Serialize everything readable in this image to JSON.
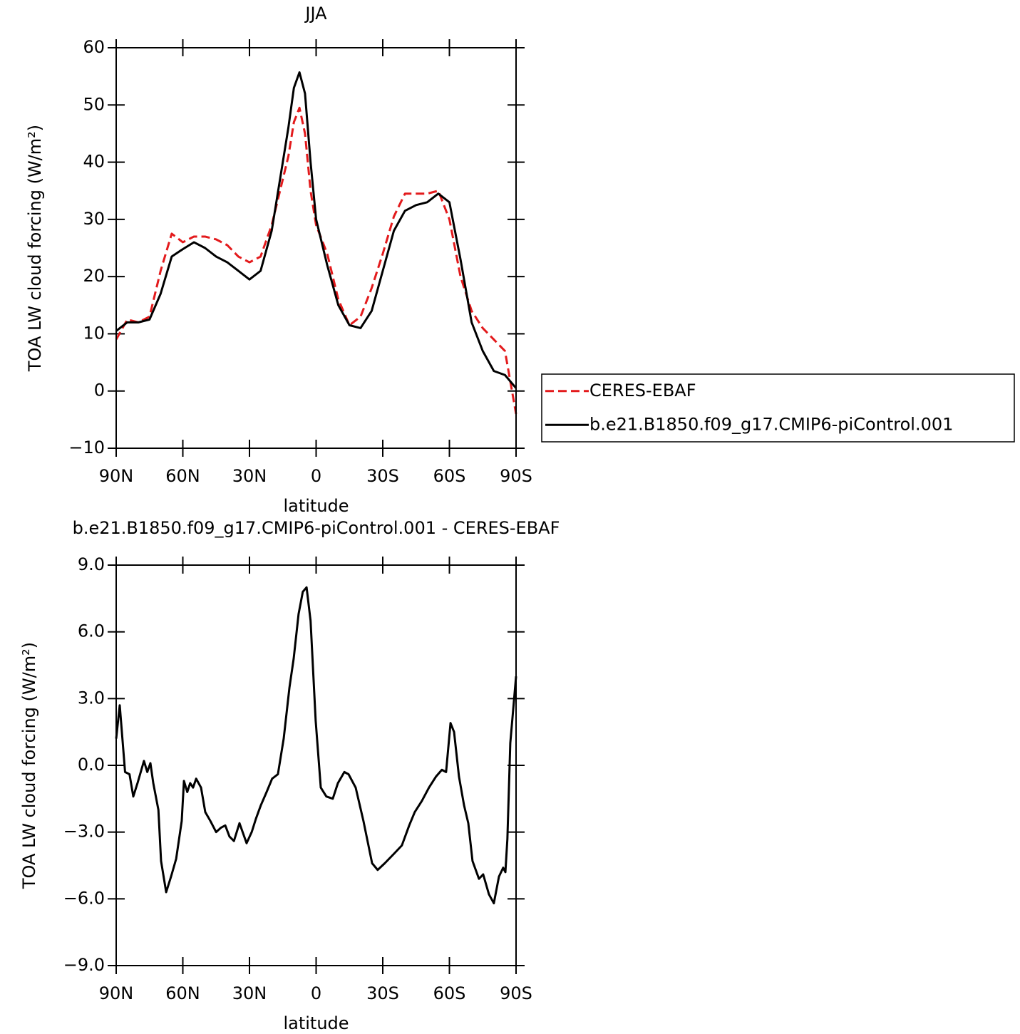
{
  "chart_data": [
    {
      "type": "line",
      "title": "JJA",
      "x_label": "latitude",
      "y_label": "TOA LW cloud forcing (W/m²)",
      "x": [
        90,
        85,
        80,
        75,
        70,
        65,
        60,
        55,
        50,
        45,
        40,
        35,
        30,
        25,
        20,
        15,
        12.5,
        10,
        7.5,
        5,
        2.5,
        0,
        -5,
        -10,
        -15,
        -20,
        -25,
        -30,
        -35,
        -40,
        -45,
        -50,
        -55,
        -60,
        -65,
        -70,
        -75,
        -80,
        -85,
        -90
      ],
      "xlim": [
        90,
        -90
      ],
      "xticks": [
        {
          "value": 90,
          "label": "90N"
        },
        {
          "value": 60,
          "label": "60N"
        },
        {
          "value": 30,
          "label": "30N"
        },
        0,
        {
          "value": -30,
          "label": "30S"
        },
        {
          "value": -60,
          "label": "60S"
        },
        {
          "value": -90,
          "label": "90S"
        }
      ],
      "ylim": [
        -10,
        60
      ],
      "yticks": [
        {
          "value": -10,
          "label": "−10"
        },
        0,
        10,
        20,
        30,
        40,
        50,
        60
      ],
      "legend": "right",
      "series": [
        {
          "name": "CERES-EBAF",
          "color": "#e31a1c",
          "linestyle": "dashed",
          "values": [
            9,
            12.5,
            12,
            13,
            21,
            27.5,
            26,
            27,
            27,
            26.5,
            25.5,
            23.5,
            22.5,
            23.5,
            29,
            37,
            41,
            47,
            49.5,
            45,
            35,
            29,
            24,
            16,
            11.5,
            13,
            18,
            24,
            30.5,
            34.5,
            34.5,
            34.5,
            35,
            30,
            20,
            14,
            11,
            9,
            7,
            -4
          ]
        },
        {
          "name": "b.e21.B1850.f09_g17.CMIP6-piControl.001",
          "color": "#000000",
          "linestyle": "solid",
          "values": [
            10.5,
            12,
            12,
            12.5,
            17,
            23.5,
            24.8,
            26,
            25,
            23.5,
            22.5,
            21,
            19.5,
            21,
            28,
            40,
            46,
            53,
            55.7,
            52,
            40,
            30,
            22,
            15,
            11.5,
            11,
            14,
            21,
            28,
            31.5,
            32.5,
            33,
            34.5,
            33,
            23,
            12,
            7,
            3.5,
            2.8,
            0.5
          ]
        }
      ]
    },
    {
      "type": "line",
      "title": "b.e21.B1850.f09_g17.CMIP6-piControl.001 - CERES-EBAF",
      "x_label": "latitude",
      "y_label": "TOA LW cloud forcing (W/m²)",
      "x": [
        90,
        88.4,
        86,
        84,
        82.3,
        80.4,
        77.5,
        76,
        74.6,
        73.3,
        71,
        69.8,
        67.5,
        65.3,
        63,
        60.5,
        59.5,
        58,
        56.7,
        55.4,
        54,
        51.8,
        49.9,
        47.6,
        45,
        42.8,
        40.9,
        39,
        37,
        34.5,
        31.3,
        29,
        27.1,
        24.9,
        22.3,
        19.8,
        17.2,
        14.6,
        12,
        10.1,
        7.9,
        6,
        4.3,
        2.5,
        0.2,
        -2.1,
        -4.6,
        -7.5,
        -9.8,
        -12.7,
        -14.6,
        -17.8,
        -21.3,
        -25.2,
        -27.7,
        -30.9,
        -34.8,
        -38.6,
        -41.9,
        -44.4,
        -47.6,
        -50.8,
        -54,
        -56.6,
        -58.5,
        -60.5,
        -62.1,
        -64.3,
        -66.6,
        -68.5,
        -70.4,
        -73.3,
        -75.2,
        -77.8,
        -80,
        -82.3,
        -84.2,
        -85.2,
        -86.1,
        -87.4,
        -90
      ],
      "xlim": [
        90,
        -90
      ],
      "xticks": [
        {
          "value": 90,
          "label": "90N"
        },
        {
          "value": 60,
          "label": "60N"
        },
        {
          "value": 30,
          "label": "30N"
        },
        0,
        {
          "value": -30,
          "label": "30S"
        },
        {
          "value": -60,
          "label": "60S"
        },
        {
          "value": -90,
          "label": "90S"
        }
      ],
      "ylim": [
        -9,
        9
      ],
      "yticks": [
        {
          "value": -9,
          "label": "−9.0"
        },
        {
          "value": -6,
          "label": "−6.0"
        },
        {
          "value": -3,
          "label": "−3.0"
        },
        {
          "value": 0,
          "label": "0.0"
        },
        {
          "value": 3,
          "label": "3.0"
        },
        {
          "value": 6,
          "label": "6.0"
        },
        {
          "value": 9,
          "label": "9.0"
        }
      ],
      "series": [
        {
          "color": "#000000",
          "linestyle": "solid",
          "values": [
            1.2,
            2.7,
            -0.3,
            -0.4,
            -1.4,
            -0.8,
            0.2,
            -0.3,
            0.1,
            -0.8,
            -2,
            -4.3,
            -5.7,
            -5,
            -4.2,
            -2.5,
            -0.7,
            -1.2,
            -0.8,
            -1,
            -0.6,
            -1,
            -2.1,
            -2.5,
            -3,
            -2.8,
            -2.7,
            -3.2,
            -3.4,
            -2.6,
            -3.5,
            -3,
            -2.4,
            -1.8,
            -1.2,
            -0.6,
            -0.4,
            1.2,
            3.5,
            4.8,
            6.8,
            7.8,
            8,
            6.5,
            2,
            -1,
            -1.4,
            -1.5,
            -0.8,
            -0.3,
            -0.4,
            -1,
            -2.5,
            -4.4,
            -4.7,
            -4.4,
            -4,
            -3.6,
            -2.7,
            -2.1,
            -1.6,
            -1,
            -0.5,
            -0.2,
            -0.3,
            1.9,
            1.5,
            -0.5,
            -1.8,
            -2.6,
            -4.3,
            -5.1,
            -4.9,
            -5.8,
            -6.2,
            -5,
            -4.6,
            -4.8,
            -3.3,
            1,
            4
          ]
        }
      ]
    }
  ]
}
